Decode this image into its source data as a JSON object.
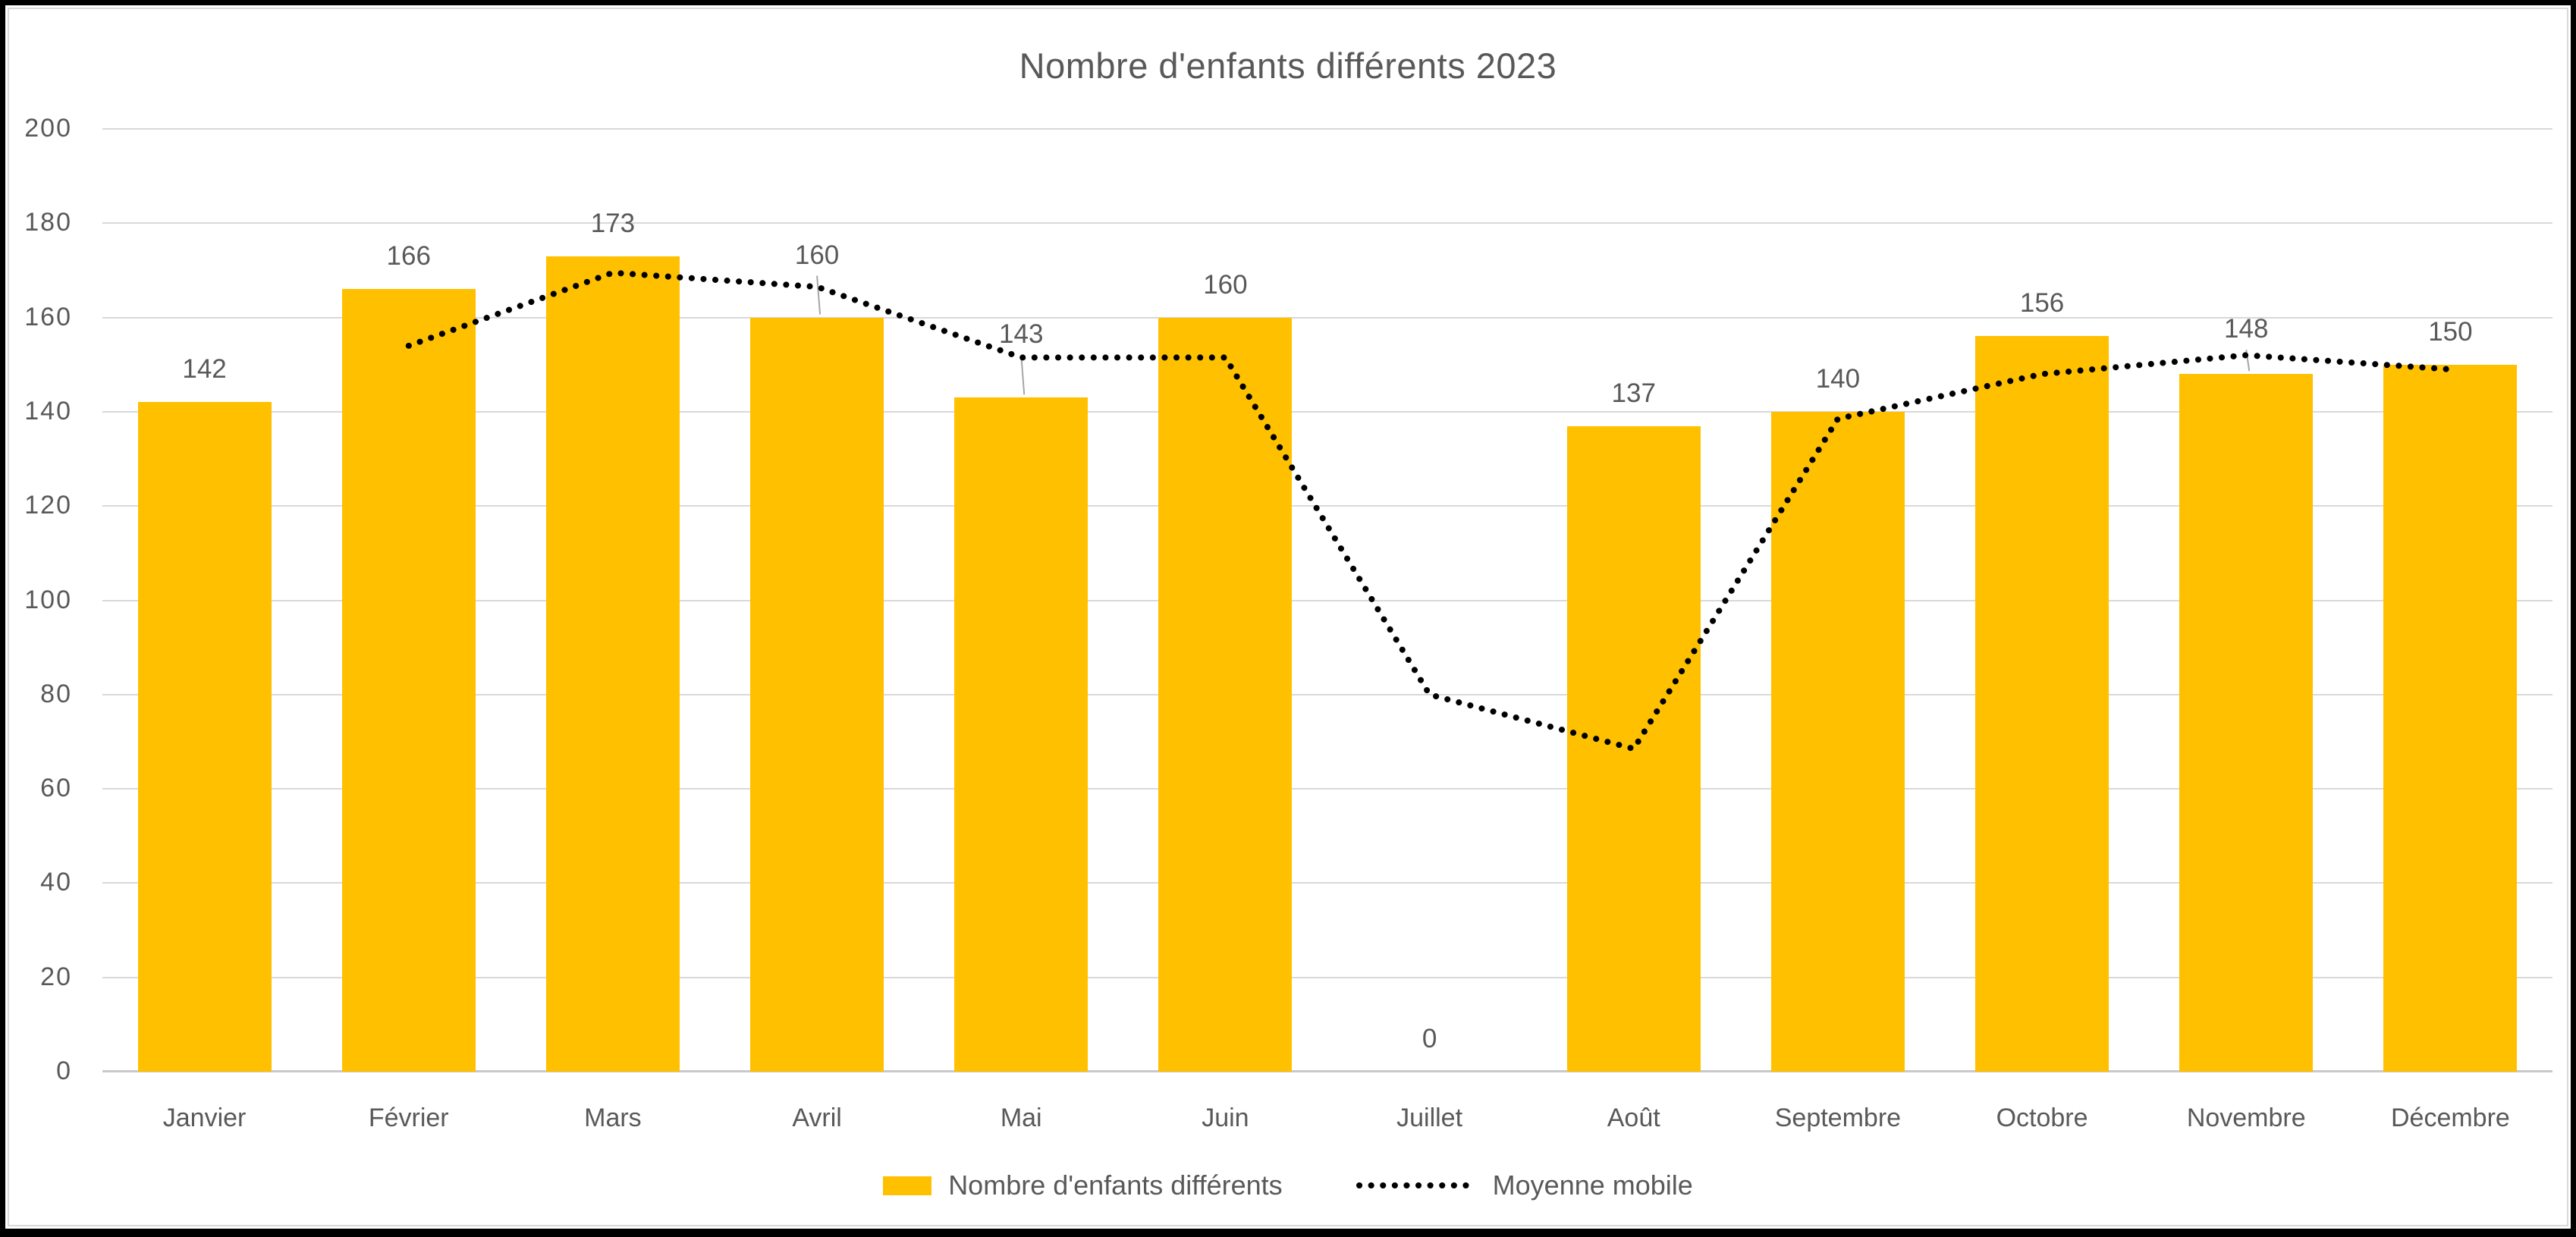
{
  "chart_data": {
    "type": "bar",
    "title": "Nombre d'enfants différents 2023",
    "categories": [
      "Janvier",
      "Février",
      "Mars",
      "Avril",
      "Mai",
      "Juin",
      "Juillet",
      "Août",
      "Septembre",
      "Octobre",
      "Novembre",
      "Décembre"
    ],
    "series": [
      {
        "name": "Nombre d'enfants différents",
        "type": "bar",
        "color": "#FFC000",
        "values": [
          142,
          166,
          173,
          160,
          143,
          160,
          0,
          137,
          140,
          156,
          148,
          150
        ],
        "data_labels": [
          "142",
          "166",
          "173",
          "160",
          "143",
          "160",
          "0",
          "137",
          "140",
          "156",
          "148",
          "150"
        ]
      },
      {
        "name": "Moyenne mobile",
        "type": "dotted-line",
        "color": "#000000",
        "values": [
          null,
          154,
          169.5,
          166.5,
          151.5,
          151.5,
          80,
          68.5,
          138.5,
          148,
          152,
          149
        ]
      }
    ],
    "ylim": [
      0,
      200
    ],
    "ytick_step": 20,
    "yticks": [
      "0",
      "20",
      "40",
      "60",
      "80",
      "100",
      "120",
      "140",
      "160",
      "180",
      "200"
    ],
    "grid": "horizontal-only",
    "legend_position": "bottom-center"
  },
  "legend": {
    "bar_label": "Nombre d'enfants différents",
    "line_label": "Moyenne mobile"
  },
  "colors": {
    "bar": "#FFC000",
    "line": "#000000",
    "text": "#595959",
    "gridline": "#D9D9D9",
    "axis_line": "#C9C9C9",
    "leader_line": "#A6A6A6",
    "background": "#FFFFFF",
    "chart_border": "#D9D9D9",
    "outer_frame": "#000000"
  }
}
